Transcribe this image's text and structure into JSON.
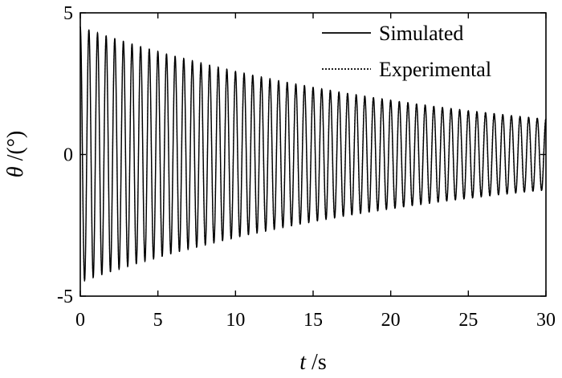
{
  "chart_data": {
    "type": "line",
    "title": "",
    "xlabel_symbol": "t",
    "xlabel_unit": " /s",
    "ylabel_symbol": "θ",
    "ylabel_unit": " /(°)",
    "xlim": [
      0,
      30
    ],
    "ylim": [
      -5,
      5
    ],
    "x_ticks": [
      0,
      5,
      10,
      15,
      20,
      25,
      30
    ],
    "y_ticks": [
      -5,
      0,
      5
    ],
    "grid": false,
    "legend_position": "top-right",
    "signal": {
      "initial_amplitude": 4.5,
      "final_amplitude": 1.25,
      "cycles": 54,
      "phase_at_start": "cosine peak"
    },
    "series": [
      {
        "name": "Simulated",
        "line_style": "solid",
        "color": "#000000"
      },
      {
        "name": "Experimental",
        "line_style": "dotted",
        "color": "#000000"
      }
    ]
  }
}
